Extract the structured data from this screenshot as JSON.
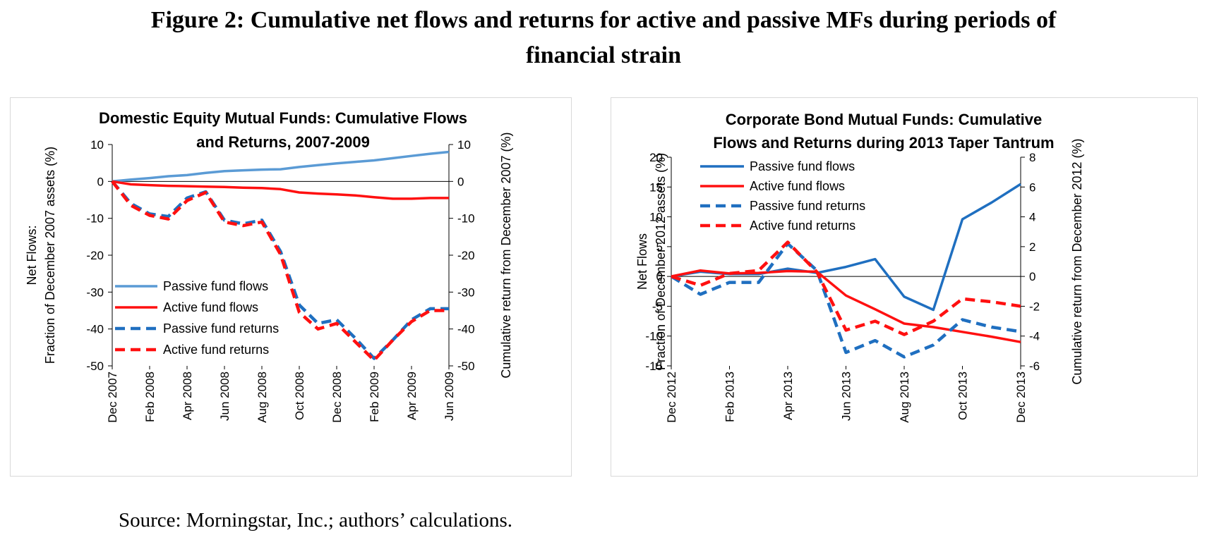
{
  "figure": {
    "title_line1": "Figure 2:  Cumulative net flows and returns for active and passive MFs during periods of",
    "title_line2": "financial strain",
    "source": "Source:  Morningstar, Inc.; authors’ calculations."
  },
  "colors": {
    "left_passive": "#5b9bd5",
    "right_passive": "#1f6fc0",
    "passive_returns": "#1f6fc0",
    "active": "#ff1010"
  },
  "chart_data": [
    {
      "type": "line",
      "title_lines": [
        "Domestic Equity Mutual Funds:  Cumulative  Flows",
        "and Returns, 2007-2009"
      ],
      "ylabel_lines": [
        "Net Flows:",
        "Fraction of December 2007 assets (%)"
      ],
      "y2label": "Cumulative return from December 2007 (%)",
      "ylim": [
        -50,
        10
      ],
      "yticks": [
        10,
        0,
        -10,
        -20,
        -30,
        -40,
        -50
      ],
      "y2lim": [
        -50,
        10
      ],
      "y2ticks": [
        10,
        0,
        -10,
        -20,
        -30,
        -40,
        -50
      ],
      "x_count": 19,
      "x_tick_labels": [
        {
          "i": 0,
          "label": "Dec 2007"
        },
        {
          "i": 2,
          "label": "Feb 2008"
        },
        {
          "i": 4,
          "label": "Apr 2008"
        },
        {
          "i": 6,
          "label": "Jun 2008"
        },
        {
          "i": 8,
          "label": "Aug 2008"
        },
        {
          "i": 10,
          "label": "Oct 2008"
        },
        {
          "i": 12,
          "label": "Dec 2008"
        },
        {
          "i": 14,
          "label": "Feb 2009"
        },
        {
          "i": 16,
          "label": "Apr 2009"
        },
        {
          "i": 18,
          "label": "Jun 2009"
        }
      ],
      "legend_position": "lower-left",
      "grid": false,
      "series": [
        {
          "name": "Passive fund flows",
          "axis": "left",
          "style": "solid",
          "color_key": "left_passive",
          "values": [
            0,
            0.5,
            0.9,
            1.4,
            1.7,
            2.3,
            2.8,
            3.0,
            3.2,
            3.3,
            3.9,
            4.4,
            4.9,
            5.3,
            5.7,
            6.3,
            6.9,
            7.5,
            8.0
          ]
        },
        {
          "name": "Active fund flows",
          "axis": "left",
          "style": "solid",
          "color_key": "active",
          "values": [
            0,
            -0.8,
            -1.0,
            -1.2,
            -1.3,
            -1.4,
            -1.5,
            -1.7,
            -1.8,
            -2.1,
            -3.0,
            -3.3,
            -3.5,
            -3.8,
            -4.3,
            -4.7,
            -4.7,
            -4.5,
            -4.5
          ]
        },
        {
          "name": "Passive fund returns",
          "axis": "right",
          "style": "dashed",
          "color_key": "passive_returns",
          "values": [
            0,
            -6.0,
            -8.8,
            -9.5,
            -4.5,
            -2.8,
            -10.5,
            -11.5,
            -10.5,
            -19.0,
            -33.5,
            -38.5,
            -37.5,
            -42.5,
            -48.0,
            -43.0,
            -37.5,
            -34.5,
            -34.5
          ]
        },
        {
          "name": "Active fund returns",
          "axis": "right",
          "style": "dashed",
          "color_key": "active",
          "values": [
            0,
            -6.5,
            -9.2,
            -10.2,
            -5.2,
            -3.0,
            -11.0,
            -12.0,
            -11.0,
            -19.8,
            -35.5,
            -40.0,
            -38.5,
            -43.5,
            -48.5,
            -43.0,
            -38.0,
            -35.0,
            -35.0
          ]
        }
      ]
    },
    {
      "type": "line",
      "title_lines": [
        "Corporate Bond Mutual Funds:  Cumulative",
        "Flows and Returns during 2013 Taper Tantrum"
      ],
      "ylabel_lines": [
        "Net Flows",
        "Fraction of December 2012 assets (%)"
      ],
      "y2label": "Cumulative return from December 2012 (%)",
      "ylim": [
        -15,
        20
      ],
      "yticks": [
        20,
        15,
        10,
        5,
        0,
        -5,
        -10,
        -15
      ],
      "y2lim": [
        -6,
        8
      ],
      "y2ticks": [
        8,
        6,
        4,
        2,
        0,
        -2,
        -4,
        -6
      ],
      "x_count": 13,
      "x_tick_labels": [
        {
          "i": 0,
          "label": "Dec 2012"
        },
        {
          "i": 2,
          "label": "Feb 2013"
        },
        {
          "i": 4,
          "label": "Apr 2013"
        },
        {
          "i": 6,
          "label": "Jun 2013"
        },
        {
          "i": 8,
          "label": "Aug 2013"
        },
        {
          "i": 10,
          "label": "Oct 2013"
        },
        {
          "i": 12,
          "label": "Dec 2013"
        }
      ],
      "legend_position": "top-left",
      "grid": false,
      "series": [
        {
          "name": "Passive fund flows",
          "axis": "left",
          "style": "solid",
          "color_key": "right_passive",
          "values": [
            0,
            0.8,
            0.4,
            0.4,
            1.3,
            0.6,
            1.6,
            2.9,
            -3.4,
            -5.6,
            9.6,
            12.4,
            15.5
          ]
        },
        {
          "name": "Active fund flows",
          "axis": "left",
          "style": "solid",
          "color_key": "active",
          "values": [
            0,
            1.0,
            0.5,
            0.6,
            0.9,
            0.8,
            -3.2,
            -5.5,
            -7.9,
            -8.5,
            -9.3,
            -10.1,
            -11.0
          ]
        },
        {
          "name": "Passive fund returns",
          "axis": "right",
          "style": "dashed",
          "color_key": "passive_returns",
          "values": [
            0,
            -1.2,
            -0.4,
            -0.4,
            2.2,
            0.4,
            -5.1,
            -4.3,
            -5.4,
            -4.6,
            -2.9,
            -3.4,
            -3.7
          ]
        },
        {
          "name": "Active fund returns",
          "axis": "right",
          "style": "dashed",
          "color_key": "active",
          "values": [
            0,
            -0.6,
            0.2,
            0.4,
            2.3,
            0.3,
            -3.6,
            -3.0,
            -3.9,
            -3.0,
            -1.5,
            -1.7,
            -2.0
          ]
        }
      ]
    }
  ]
}
